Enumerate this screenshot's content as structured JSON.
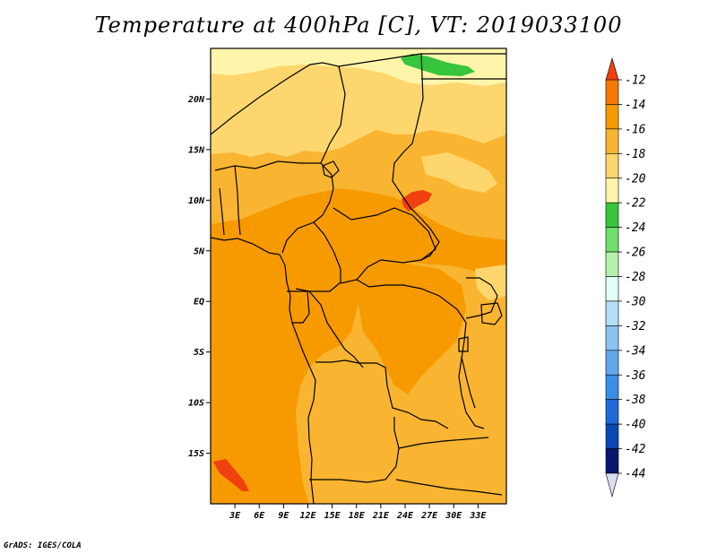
{
  "title": "Temperature at 400hPa [C], VT: 2019033100",
  "credit": "GrADS: IGES/COLA",
  "map": {
    "lon_range": [
      0,
      36.5
    ],
    "lat_range": [
      -20,
      25
    ],
    "lon_ticks": [
      {
        "value": 3,
        "label": "3E"
      },
      {
        "value": 6,
        "label": "6E"
      },
      {
        "value": 9,
        "label": "9E"
      },
      {
        "value": 12,
        "label": "12E"
      },
      {
        "value": 15,
        "label": "15E"
      },
      {
        "value": 18,
        "label": "18E"
      },
      {
        "value": 21,
        "label": "21E"
      },
      {
        "value": 24,
        "label": "24E"
      },
      {
        "value": 27,
        "label": "27E"
      },
      {
        "value": 30,
        "label": "30E"
      },
      {
        "value": 33,
        "label": "33E"
      }
    ],
    "lat_ticks": [
      {
        "value": 20,
        "label": "20N"
      },
      {
        "value": 15,
        "label": "15N"
      },
      {
        "value": 10,
        "label": "10N"
      },
      {
        "value": 5,
        "label": "5N"
      },
      {
        "value": 0,
        "label": "EQ"
      },
      {
        "value": -5,
        "label": "5S"
      },
      {
        "value": -10,
        "label": "10S"
      },
      {
        "value": -15,
        "label": "15S"
      }
    ]
  },
  "colorbar": {
    "levels": [
      "-12",
      "-14",
      "-16",
      "-18",
      "-20",
      "-22",
      "-24",
      "-26",
      "-28",
      "-30",
      "-32",
      "-34",
      "-36",
      "-38",
      "-40",
      "-42",
      "-44"
    ],
    "colors": [
      "#f04010",
      "#f77900",
      "#f79a00",
      "#f9b531",
      "#fed66e",
      "#fff5aa",
      "#36c53c",
      "#6fe06b",
      "#b5f1ad",
      "#e2fcf7",
      "#b4def8",
      "#8ec2f2",
      "#5fa8ea",
      "#3a8ee6",
      "#2069d8",
      "#0a49b5",
      "#0a1670"
    ],
    "top_arrow_color": "#f04010",
    "bottom_arrow_color": "#dcdcf5"
  },
  "field_colors": {
    "t_m14": "#f79a00",
    "t_m16": "#f9b531",
    "t_m18": "#fed66e",
    "t_m20": "#fff5aa",
    "t_m12": "#f04010",
    "t_m24": "#36c53c"
  }
}
